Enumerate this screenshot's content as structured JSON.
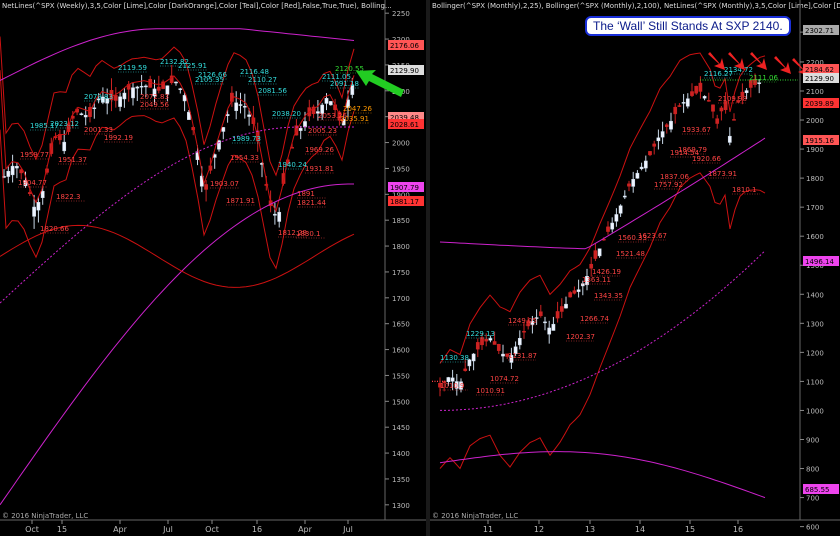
{
  "left": {
    "header": "NetLines(^SPX (Weekly),3,5,Color [Lime],Color [DarkOrange],Color [Teal],Color [Red],False,True,True), Bolling...",
    "footer": "© 2016 NinjaTrader, LLC",
    "yticks": [
      2250,
      2200,
      2150,
      2100,
      2050,
      2000,
      1950,
      1900,
      1850,
      1800,
      1750,
      1700,
      1650,
      1600,
      1550,
      1500,
      1450,
      1400,
      1350,
      1300
    ],
    "xticks": [
      "Oct",
      "15",
      "Apr",
      "Jul",
      "Oct",
      "16",
      "Apr",
      "Jul"
    ],
    "price_flags": [
      {
        "value": "2176.06",
        "color": "#ff5555"
      },
      {
        "value": "2129.90",
        "color": "#dddddd"
      },
      {
        "value": "2039.48",
        "color": "#ff8888"
      },
      {
        "value": "2028.61",
        "color": "#ff3333"
      },
      {
        "value": "1907.79",
        "color": "#ee44ee"
      },
      {
        "value": "1881.17",
        "color": "#ff3333"
      }
    ],
    "labels": [
      {
        "text": "2119.59",
        "color": "#33dddd"
      },
      {
        "text": "2132.82",
        "color": "#33dddd"
      },
      {
        "text": "2125.91",
        "color": "#33dddd"
      },
      {
        "text": "2126.66",
        "color": "#33dddd"
      },
      {
        "text": "2105.35",
        "color": "#33dddd"
      },
      {
        "text": "2116.48",
        "color": "#33dddd"
      },
      {
        "text": "2110.27",
        "color": "#33dddd"
      },
      {
        "text": "2081.56",
        "color": "#33dddd"
      },
      {
        "text": "2111.05",
        "color": "#33dddd"
      },
      {
        "text": "2120.55",
        "color": "#33dd33"
      },
      {
        "text": "2091.18",
        "color": "#33dddd"
      },
      {
        "text": "2079.83",
        "color": "#33dddd"
      },
      {
        "text": "2072.83",
        "color": "#ff4444"
      },
      {
        "text": "2049.56",
        "color": "#ff4444"
      },
      {
        "text": "2047.26",
        "color": "#ff9900"
      },
      {
        "text": "2035.91",
        "color": "#ff9900"
      },
      {
        "text": "2053.26",
        "color": "#ff4444"
      },
      {
        "text": "2005.23",
        "color": "#ff4444"
      },
      {
        "text": "2001.33",
        "color": "#ff4444"
      },
      {
        "text": "1992.19",
        "color": "#ff4444"
      },
      {
        "text": "2023.12",
        "color": "#33dddd"
      },
      {
        "text": "1985.17",
        "color": "#33dddd"
      },
      {
        "text": "2038.20",
        "color": "#33dddd"
      },
      {
        "text": "1989.73",
        "color": "#33dddd"
      },
      {
        "text": "1969.26",
        "color": "#ff4444"
      },
      {
        "text": "1954.33",
        "color": "#ff4444"
      },
      {
        "text": "1951.37",
        "color": "#ff4444"
      },
      {
        "text": "1959.77",
        "color": "#ff4444"
      },
      {
        "text": "1931.81",
        "color": "#ff4444"
      },
      {
        "text": "1940.24",
        "color": "#33dddd"
      },
      {
        "text": "1904.77",
        "color": "#ff4444"
      },
      {
        "text": "1903.07",
        "color": "#ff4444"
      },
      {
        "text": "1891",
        "color": "#ff4444"
      },
      {
        "text": "1871.91",
        "color": "#ff4444"
      },
      {
        "text": "1821.44",
        "color": "#ff4444"
      },
      {
        "text": "1822.3",
        "color": "#ff4444"
      },
      {
        "text": "1820.66",
        "color": "#ff4444"
      },
      {
        "text": "1812.29",
        "color": "#ff4444"
      },
      {
        "text": "1830.1",
        "color": "#ff4444"
      }
    ]
  },
  "right": {
    "header": "Bollinger(^SPX (Monthly),2,25), Bollinger(^SPX (Monthly),2,100), NetLines(^SPX (Monthly),3,5,Color [Lime],Color [Dark",
    "footer": "© 2016 NinjaTrader, LLC",
    "title": "The ‘Wall’ Still Stands At SXP 2140.",
    "yticks": [
      2302.71,
      2200,
      2100,
      2000,
      1900,
      1800,
      1700,
      1600,
      1500,
      1400,
      1300,
      1200,
      1100,
      1000,
      900,
      800,
      700,
      600
    ],
    "xticks": [
      "11",
      "12",
      "13",
      "14",
      "15",
      "16"
    ],
    "price_flags": [
      {
        "value": "2302.71",
        "color": "#aaaaaa"
      },
      {
        "value": "2184.62",
        "color": "#ff5555"
      },
      {
        "value": "2129.90",
        "color": "#dddddd"
      },
      {
        "value": "2039.89",
        "color": "#ff3333"
      },
      {
        "value": "1915.16",
        "color": "#ff5555"
      },
      {
        "value": "1496.14",
        "color": "#ee44ee"
      },
      {
        "value": "685.55",
        "color": "#ee44ee"
      }
    ],
    "labels": [
      {
        "text": "2134.72",
        "color": "#33dddd"
      },
      {
        "text": "2116.27",
        "color": "#33dddd"
      },
      {
        "text": "2111.06",
        "color": "#33dd33"
      },
      {
        "text": "2109.98",
        "color": "#ff4444"
      },
      {
        "text": "1933.67",
        "color": "#ff4444"
      },
      {
        "text": "1914.54",
        "color": "#ff4444"
      },
      {
        "text": "1920.66",
        "color": "#ff4444"
      },
      {
        "text": "1869.79",
        "color": "#ff4444"
      },
      {
        "text": "1873.91",
        "color": "#ff4444"
      },
      {
        "text": "1810.1",
        "color": "#ff4444"
      },
      {
        "text": "1837.06",
        "color": "#ff4444"
      },
      {
        "text": "1757.92",
        "color": "#ff4444"
      },
      {
        "text": "1623.67",
        "color": "#ff4444"
      },
      {
        "text": "1560.33",
        "color": "#ff4444"
      },
      {
        "text": "1521.48",
        "color": "#ff4444"
      },
      {
        "text": "1426.19",
        "color": "#ff4444"
      },
      {
        "text": "1343.35",
        "color": "#ff4444"
      },
      {
        "text": "1266.74",
        "color": "#ff4444"
      },
      {
        "text": "1249.05",
        "color": "#ff4444"
      },
      {
        "text": "1202.37",
        "color": "#ff4444"
      },
      {
        "text": "1131.87",
        "color": "#ff4444"
      },
      {
        "text": "1074.72",
        "color": "#ff4444"
      },
      {
        "text": "1010.91",
        "color": "#ff4444"
      },
      {
        "text": "1010.9",
        "color": "#ff4444"
      },
      {
        "text": "1130.38",
        "color": "#33dddd"
      },
      {
        "text": "1229.13",
        "color": "#33dddd"
      },
      {
        "text": "1363.11",
        "color": "#ff4444"
      }
    ]
  },
  "colors": {
    "bb25": "#cc1111",
    "bb100": "#cc22cc",
    "up": "#c9d8e8",
    "down": "#cc2222",
    "arrow_left": "#22cc22",
    "arrow_right": "#ee2222"
  }
}
